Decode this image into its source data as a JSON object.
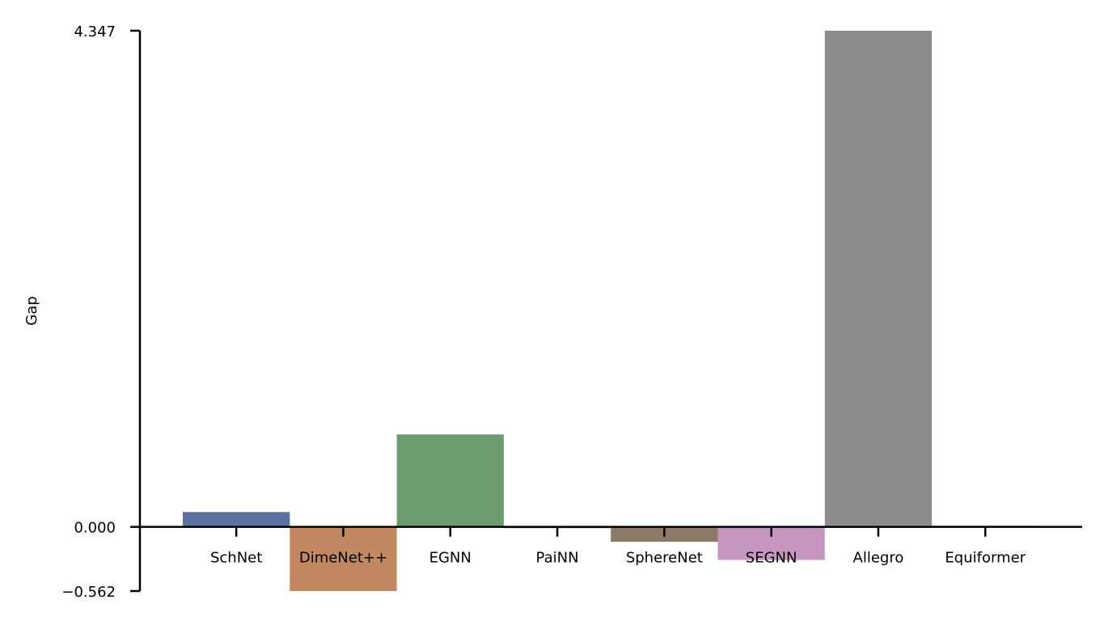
{
  "chart_data": {
    "type": "bar",
    "ylabel": "Gap",
    "categories": [
      "SchNet",
      "DimeNet++",
      "EGNN",
      "PaiNN",
      "SphereNet",
      "SEGNN",
      "Allegro",
      "Equiformer"
    ],
    "values": [
      0.13,
      -0.562,
      0.81,
      -0.01,
      -0.13,
      -0.29,
      4.347,
      0.0
    ],
    "colors": [
      "#5b72a0",
      "#c18862",
      "#6b9c70",
      "#6b6b6b",
      "#8c7967",
      "#c796bf",
      "#8c8c8c",
      "#c9c9c9"
    ],
    "ylim": [
      -0.562,
      4.347
    ],
    "yticks": [
      -0.562,
      0.0,
      4.347
    ],
    "ytick_labels": [
      "−0.562",
      "0.000",
      "4.347"
    ],
    "grid": false,
    "legend": "none"
  }
}
